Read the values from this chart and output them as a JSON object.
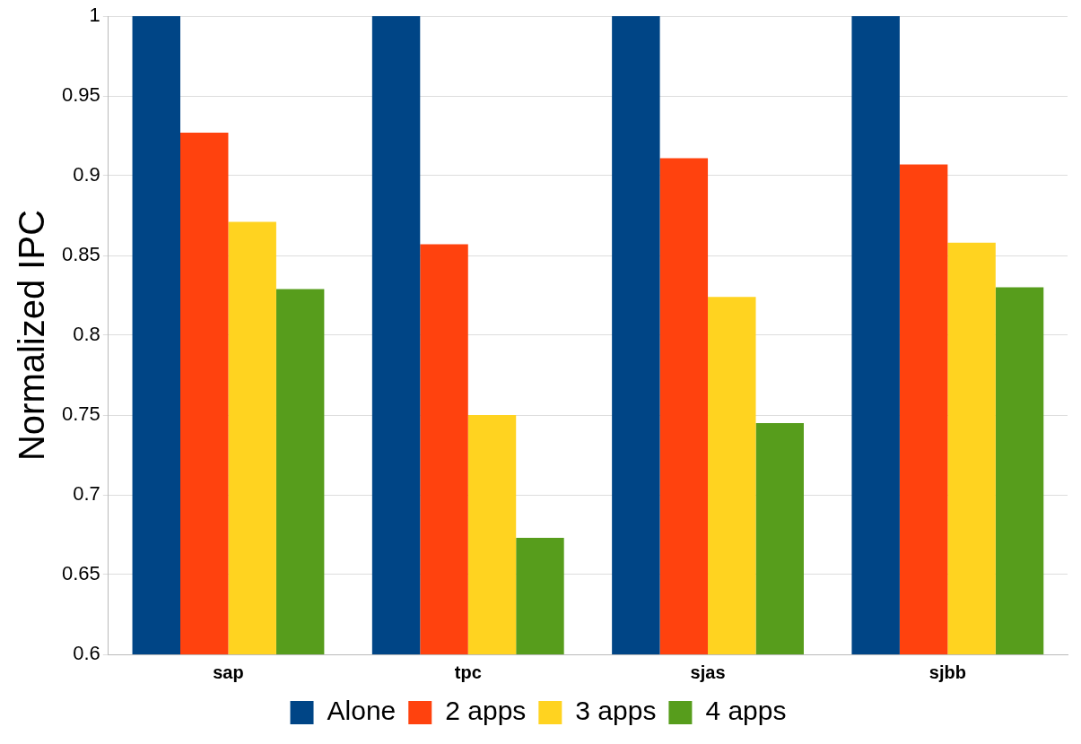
{
  "chart_data": {
    "type": "bar",
    "ylabel": "Normalized IPC",
    "categories": [
      "sap",
      "tpc",
      "sjas",
      "sjbb"
    ],
    "series": [
      {
        "name": "Alone",
        "color": "#004586",
        "values": [
          1,
          1,
          1,
          1
        ]
      },
      {
        "name": "2 apps",
        "color": "#ff420e",
        "values": [
          0.927,
          0.857,
          0.911,
          0.907
        ]
      },
      {
        "name": "3 apps",
        "color": "#ffd320",
        "values": [
          0.871,
          0.75,
          0.824,
          0.858
        ]
      },
      {
        "name": "4 apps",
        "color": "#579d1c",
        "values": [
          0.829,
          0.673,
          0.745,
          0.83
        ]
      }
    ],
    "ylim": [
      0.6,
      1
    ],
    "yticks": [
      0.6,
      0.65,
      0.7,
      0.75,
      0.8,
      0.85,
      0.9,
      0.95,
      1
    ],
    "grid": "y",
    "legend": "bottom"
  }
}
